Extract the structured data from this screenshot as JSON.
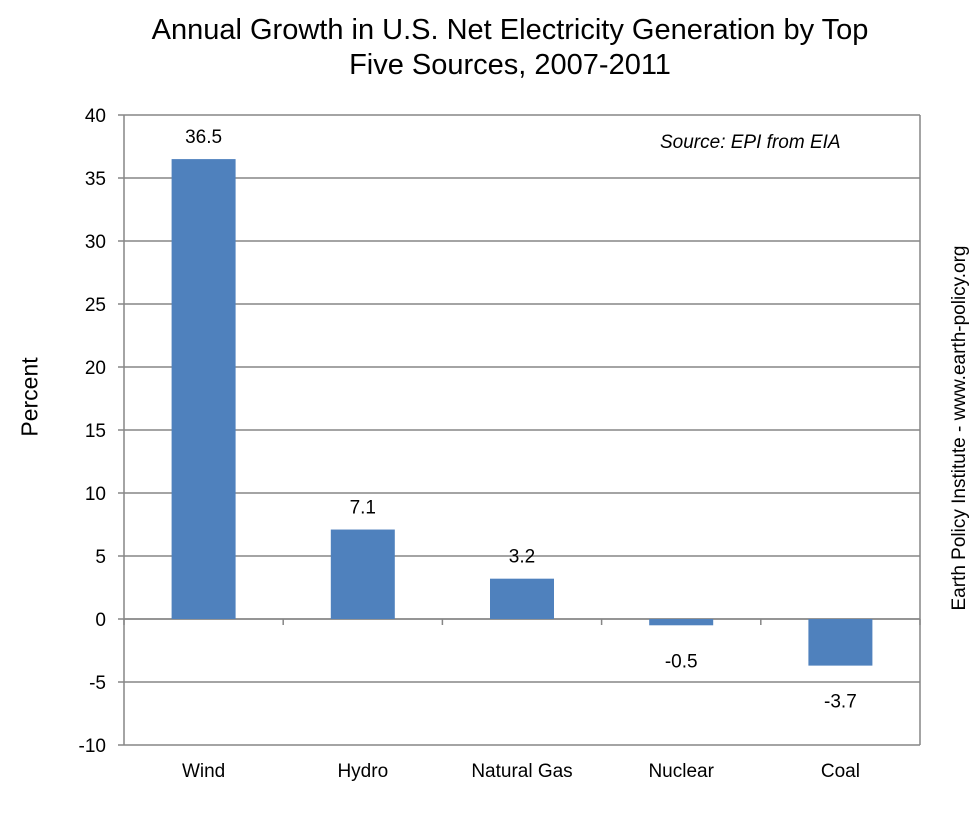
{
  "chart_data": {
    "type": "bar",
    "title_lines": [
      "Annual Growth in U.S. Net Electricity Generation by Top",
      "Five Sources, 2007-2011"
    ],
    "ylabel": "Percent",
    "xlabel": "",
    "categories": [
      "Wind",
      "Hydro",
      "Natural Gas",
      "Nuclear",
      "Coal"
    ],
    "values": [
      36.5,
      7.1,
      3.2,
      -0.5,
      -3.7
    ],
    "data_labels": [
      "36.5",
      "7.1",
      "3.2",
      "-0.5",
      "-3.7"
    ],
    "ylim": [
      -10,
      40
    ],
    "yticks": [
      40,
      35,
      30,
      25,
      20,
      15,
      10,
      5,
      0,
      -5,
      -10
    ],
    "grid": true,
    "legend": "none",
    "annotation": "Source: EPI from EIA",
    "side_credit": "Earth Policy Institute - www.earth-policy.org",
    "colors": {
      "bar": "#4f81bd",
      "grid": "#868686",
      "axis": "#868686"
    }
  }
}
